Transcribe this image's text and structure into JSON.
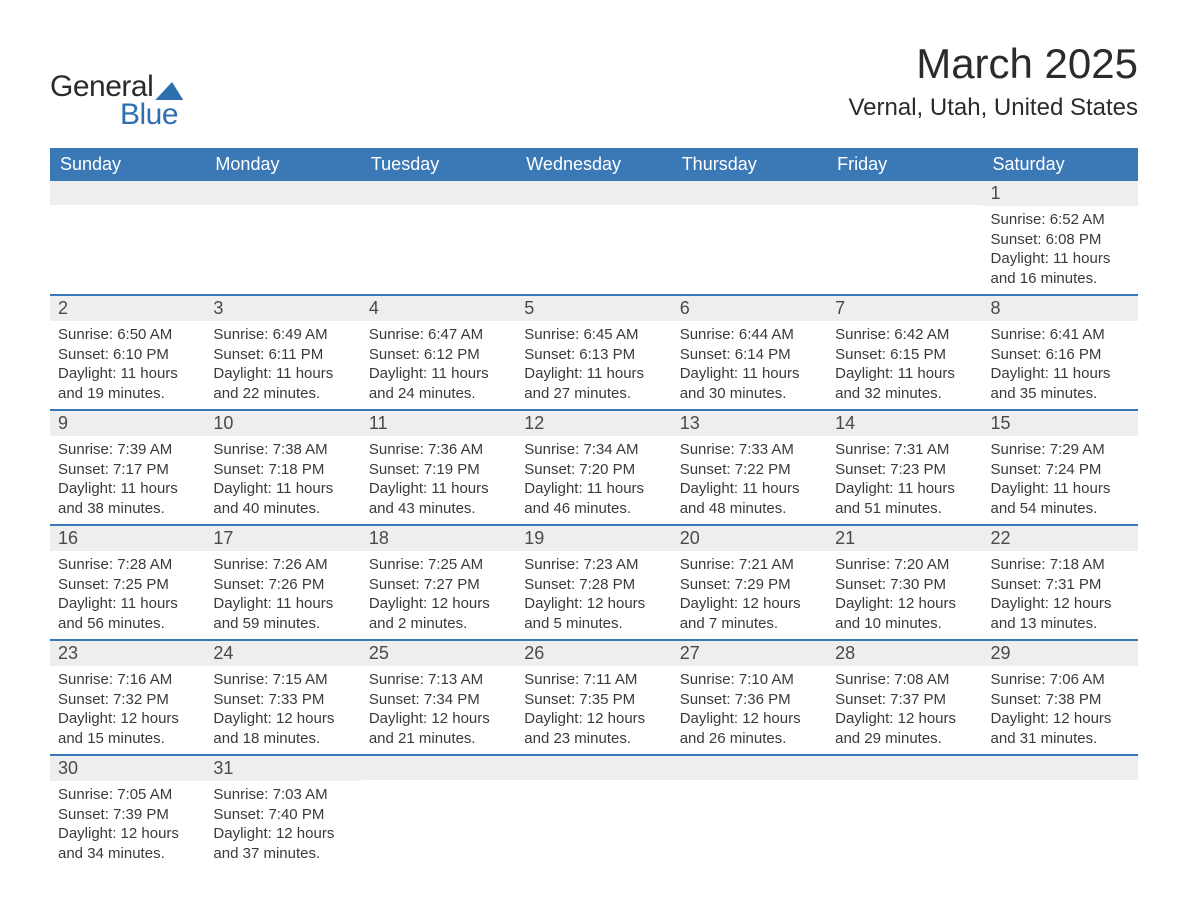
{
  "brand": {
    "name_part1": "General",
    "name_part2": "Blue",
    "text_color": "#2b2b2b",
    "accent_color": "#2e6fb0"
  },
  "header": {
    "month_title": "March 2025",
    "location": "Vernal, Utah, United States"
  },
  "style": {
    "header_bg": "#3b78b6",
    "header_text": "#ffffff",
    "row_divider": "#3b78b6",
    "daynum_bg": "#eeeeee",
    "body_text": "#3a3a3a",
    "page_bg": "#ffffff",
    "font_family": "Arial",
    "month_title_fontsize": 42,
    "location_fontsize": 24,
    "weekday_fontsize": 18,
    "daynum_fontsize": 18,
    "detail_fontsize": 15
  },
  "columns": [
    "Sunday",
    "Monday",
    "Tuesday",
    "Wednesday",
    "Thursday",
    "Friday",
    "Saturday"
  ],
  "weeks": [
    [
      null,
      null,
      null,
      null,
      null,
      null,
      {
        "n": "1",
        "sunrise": "6:52 AM",
        "sunset": "6:08 PM",
        "daylight": "11 hours and 16 minutes."
      }
    ],
    [
      {
        "n": "2",
        "sunrise": "6:50 AM",
        "sunset": "6:10 PM",
        "daylight": "11 hours and 19 minutes."
      },
      {
        "n": "3",
        "sunrise": "6:49 AM",
        "sunset": "6:11 PM",
        "daylight": "11 hours and 22 minutes."
      },
      {
        "n": "4",
        "sunrise": "6:47 AM",
        "sunset": "6:12 PM",
        "daylight": "11 hours and 24 minutes."
      },
      {
        "n": "5",
        "sunrise": "6:45 AM",
        "sunset": "6:13 PM",
        "daylight": "11 hours and 27 minutes."
      },
      {
        "n": "6",
        "sunrise": "6:44 AM",
        "sunset": "6:14 PM",
        "daylight": "11 hours and 30 minutes."
      },
      {
        "n": "7",
        "sunrise": "6:42 AM",
        "sunset": "6:15 PM",
        "daylight": "11 hours and 32 minutes."
      },
      {
        "n": "8",
        "sunrise": "6:41 AM",
        "sunset": "6:16 PM",
        "daylight": "11 hours and 35 minutes."
      }
    ],
    [
      {
        "n": "9",
        "sunrise": "7:39 AM",
        "sunset": "7:17 PM",
        "daylight": "11 hours and 38 minutes."
      },
      {
        "n": "10",
        "sunrise": "7:38 AM",
        "sunset": "7:18 PM",
        "daylight": "11 hours and 40 minutes."
      },
      {
        "n": "11",
        "sunrise": "7:36 AM",
        "sunset": "7:19 PM",
        "daylight": "11 hours and 43 minutes."
      },
      {
        "n": "12",
        "sunrise": "7:34 AM",
        "sunset": "7:20 PM",
        "daylight": "11 hours and 46 minutes."
      },
      {
        "n": "13",
        "sunrise": "7:33 AM",
        "sunset": "7:22 PM",
        "daylight": "11 hours and 48 minutes."
      },
      {
        "n": "14",
        "sunrise": "7:31 AM",
        "sunset": "7:23 PM",
        "daylight": "11 hours and 51 minutes."
      },
      {
        "n": "15",
        "sunrise": "7:29 AM",
        "sunset": "7:24 PM",
        "daylight": "11 hours and 54 minutes."
      }
    ],
    [
      {
        "n": "16",
        "sunrise": "7:28 AM",
        "sunset": "7:25 PM",
        "daylight": "11 hours and 56 minutes."
      },
      {
        "n": "17",
        "sunrise": "7:26 AM",
        "sunset": "7:26 PM",
        "daylight": "11 hours and 59 minutes."
      },
      {
        "n": "18",
        "sunrise": "7:25 AM",
        "sunset": "7:27 PM",
        "daylight": "12 hours and 2 minutes."
      },
      {
        "n": "19",
        "sunrise": "7:23 AM",
        "sunset": "7:28 PM",
        "daylight": "12 hours and 5 minutes."
      },
      {
        "n": "20",
        "sunrise": "7:21 AM",
        "sunset": "7:29 PM",
        "daylight": "12 hours and 7 minutes."
      },
      {
        "n": "21",
        "sunrise": "7:20 AM",
        "sunset": "7:30 PM",
        "daylight": "12 hours and 10 minutes."
      },
      {
        "n": "22",
        "sunrise": "7:18 AM",
        "sunset": "7:31 PM",
        "daylight": "12 hours and 13 minutes."
      }
    ],
    [
      {
        "n": "23",
        "sunrise": "7:16 AM",
        "sunset": "7:32 PM",
        "daylight": "12 hours and 15 minutes."
      },
      {
        "n": "24",
        "sunrise": "7:15 AM",
        "sunset": "7:33 PM",
        "daylight": "12 hours and 18 minutes."
      },
      {
        "n": "25",
        "sunrise": "7:13 AM",
        "sunset": "7:34 PM",
        "daylight": "12 hours and 21 minutes."
      },
      {
        "n": "26",
        "sunrise": "7:11 AM",
        "sunset": "7:35 PM",
        "daylight": "12 hours and 23 minutes."
      },
      {
        "n": "27",
        "sunrise": "7:10 AM",
        "sunset": "7:36 PM",
        "daylight": "12 hours and 26 minutes."
      },
      {
        "n": "28",
        "sunrise": "7:08 AM",
        "sunset": "7:37 PM",
        "daylight": "12 hours and 29 minutes."
      },
      {
        "n": "29",
        "sunrise": "7:06 AM",
        "sunset": "7:38 PM",
        "daylight": "12 hours and 31 minutes."
      }
    ],
    [
      {
        "n": "30",
        "sunrise": "7:05 AM",
        "sunset": "7:39 PM",
        "daylight": "12 hours and 34 minutes."
      },
      {
        "n": "31",
        "sunrise": "7:03 AM",
        "sunset": "7:40 PM",
        "daylight": "12 hours and 37 minutes."
      },
      null,
      null,
      null,
      null,
      null
    ]
  ],
  "labels": {
    "sunrise": "Sunrise:",
    "sunset": "Sunset:",
    "daylight": "Daylight:"
  }
}
